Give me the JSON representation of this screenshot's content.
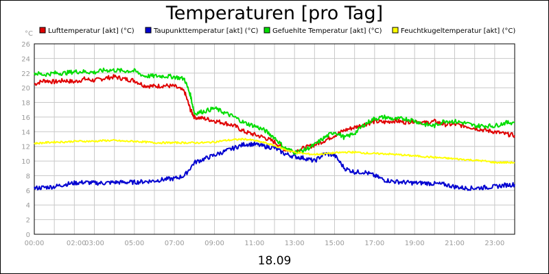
{
  "chart_data": {
    "type": "line",
    "title": "Temperaturen [pro Tag]",
    "ylabel": "°C",
    "xlabel": "18.09",
    "ylim": [
      0,
      26
    ],
    "xlim": [
      0,
      24
    ],
    "y_ticks": [
      "0",
      "2",
      "4",
      "6",
      "8",
      "10",
      "12",
      "14",
      "16",
      "18",
      "20",
      "22",
      "24",
      "26"
    ],
    "x_tick_labels": [
      {
        "t": 0,
        "label": "00:00"
      },
      {
        "t": 2.1,
        "label": "02:00"
      },
      {
        "t": 3,
        "label": "03:00"
      },
      {
        "t": 5,
        "label": "05:00"
      },
      {
        "t": 7,
        "label": "07:00"
      },
      {
        "t": 9,
        "label": "09:00"
      },
      {
        "t": 11,
        "label": "11:00"
      },
      {
        "t": 13,
        "label": "13:00"
      },
      {
        "t": 15,
        "label": "15:00"
      },
      {
        "t": 17,
        "label": "17:00"
      },
      {
        "t": 19,
        "label": "19:00"
      },
      {
        "t": 21,
        "label": "21:00"
      },
      {
        "t": 23,
        "label": "23:00"
      }
    ],
    "grid": true,
    "legend_position": "top",
    "series": [
      {
        "name": "Lufttemperatur [akt] (°C)",
        "color": "#e00000",
        "x": [
          0,
          0.5,
          1,
          1.5,
          2,
          2.5,
          3,
          3.5,
          4,
          4.5,
          5,
          5.5,
          6,
          6.5,
          7,
          7.5,
          7.8,
          8,
          8.5,
          9,
          9.5,
          10,
          10.5,
          11,
          11.5,
          12,
          12.5,
          13,
          13.5,
          14,
          14.5,
          15,
          15.5,
          16,
          16.5,
          17,
          17.5,
          18,
          18.5,
          19,
          19.5,
          20,
          20.5,
          21,
          21.5,
          22,
          22.5,
          23,
          23.5,
          24
        ],
        "y": [
          20.5,
          21,
          20.8,
          21,
          20.8,
          21.2,
          21,
          21.3,
          21.5,
          21.2,
          21,
          20.3,
          20.2,
          20.3,
          20.2,
          19.5,
          17,
          16,
          15.8,
          15.5,
          15.2,
          14.8,
          14,
          13.6,
          13.2,
          12.6,
          11.6,
          11.3,
          11.8,
          12.2,
          12.8,
          13.5,
          14.2,
          14.6,
          15,
          15.4,
          15.3,
          15.5,
          15.3,
          15.5,
          15.2,
          15.4,
          15,
          15,
          14.8,
          14.5,
          14.2,
          14,
          13.7,
          13.5
        ]
      },
      {
        "name": "Taupunkttemperatur [akt] (°C)",
        "color": "#0000d0",
        "x": [
          0,
          0.5,
          1,
          1.5,
          2,
          2.5,
          3,
          3.5,
          4,
          4.5,
          5,
          5.5,
          6,
          6.5,
          7,
          7.5,
          8,
          8.5,
          9,
          9.5,
          10,
          10.5,
          11,
          11.5,
          12,
          12.5,
          13,
          13.5,
          14,
          14.5,
          15,
          15.5,
          16,
          16.5,
          17,
          17.5,
          18,
          18.5,
          19,
          19.5,
          20,
          20.5,
          21,
          21.5,
          22,
          22.5,
          23,
          23.5,
          24
        ],
        "y": [
          6.3,
          6.4,
          6.5,
          6.8,
          7,
          7.1,
          7,
          7,
          7.1,
          7.1,
          7.1,
          7.2,
          7.3,
          7.5,
          7.6,
          8,
          9.8,
          10.3,
          10.8,
          11.3,
          11.8,
          12.3,
          12.3,
          12,
          11.8,
          11,
          10.6,
          10.4,
          10,
          11,
          10.8,
          9,
          8.5,
          8.5,
          8,
          7.4,
          7.2,
          7.1,
          7,
          7,
          6.9,
          6.8,
          6.5,
          6.3,
          6.3,
          6.4,
          6.5,
          6.7,
          6.8
        ]
      },
      {
        "name": "Gefuehlte Temperatur [akt] (°C)",
        "color": "#00dd00",
        "x": [
          0,
          0.5,
          1,
          1.5,
          2,
          2.5,
          3,
          3.5,
          4,
          4.5,
          5,
          5.5,
          6,
          6.5,
          7,
          7.5,
          7.8,
          8,
          8.5,
          9,
          9.5,
          10,
          10.5,
          11,
          11.5,
          12,
          12.5,
          13,
          13.5,
          14,
          14.5,
          15,
          15.5,
          16,
          16.5,
          17,
          17.5,
          18,
          18.5,
          19,
          19.5,
          20,
          20.5,
          21,
          21.5,
          22,
          22.5,
          23,
          23.5,
          24
        ],
        "y": [
          22,
          21.8,
          22,
          22,
          22.2,
          22.2,
          22.1,
          22.4,
          22.4,
          22.3,
          22.3,
          21.6,
          21.6,
          21.6,
          21.5,
          21.2,
          19,
          16.5,
          16.8,
          17.2,
          16.6,
          16,
          15.2,
          14.8,
          14.2,
          13.2,
          11.8,
          11.2,
          11.5,
          12.2,
          13.2,
          14,
          13.2,
          13.8,
          15,
          15.8,
          16,
          15.7,
          15.8,
          15.5,
          15,
          14.8,
          15.5,
          15.4,
          15.2,
          14.8,
          14.8,
          14.8,
          15.2,
          15.3
        ]
      },
      {
        "name": "Feuchtkugeltemperatur [akt] (°C)",
        "color": "#ffff00",
        "x": [
          0,
          0.5,
          1,
          1.5,
          2,
          2.5,
          3,
          3.5,
          4,
          4.5,
          5,
          5.5,
          6,
          6.5,
          7,
          7.5,
          8,
          8.5,
          9,
          9.5,
          10,
          10.5,
          11,
          11.5,
          12,
          12.5,
          13,
          13.5,
          14,
          14.5,
          15,
          15.5,
          16,
          16.5,
          17,
          17.5,
          18,
          18.5,
          19,
          19.5,
          20,
          20.5,
          21,
          21.5,
          22,
          22.5,
          23,
          23.5,
          24
        ],
        "y": [
          12.4,
          12.5,
          12.6,
          12.6,
          12.7,
          12.7,
          12.7,
          12.8,
          12.8,
          12.7,
          12.7,
          12.6,
          12.5,
          12.5,
          12.5,
          12.5,
          12.5,
          12.5,
          12.6,
          12.8,
          12.9,
          13,
          12.8,
          12.5,
          12.1,
          11.6,
          11.2,
          11,
          10.9,
          11,
          11.1,
          11.2,
          11.2,
          11.1,
          11,
          11,
          10.9,
          10.8,
          10.7,
          10.6,
          10.5,
          10.4,
          10.3,
          10.2,
          10.1,
          10,
          9.8,
          9.8,
          9.8
        ]
      }
    ]
  }
}
